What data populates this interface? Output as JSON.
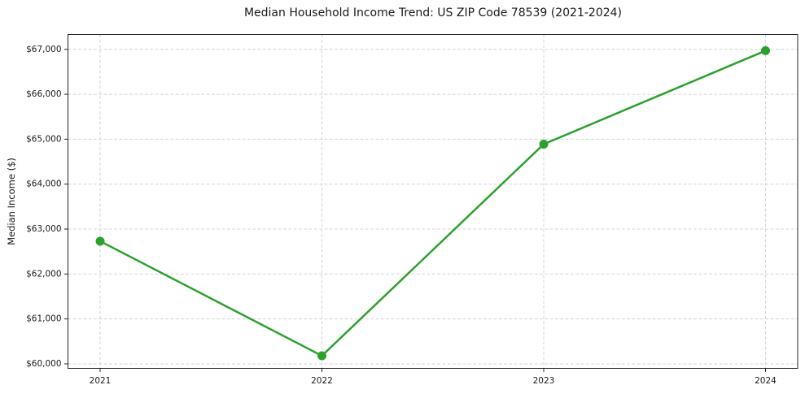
{
  "page": {
    "background": "#ffffff"
  },
  "chart_data": {
    "type": "line",
    "title": "Median Household Income Trend: US ZIP Code 78539 (2021-2024)",
    "xlabel": "",
    "ylabel": "Median Income ($)",
    "x": [
      2021,
      2022,
      2023,
      2024
    ],
    "series": [
      {
        "values": [
          62730,
          60180,
          64890,
          66970
        ],
        "color": "#2ca02c",
        "marker": "circle"
      }
    ],
    "x_tick_labels": [
      "2021",
      "2022",
      "2023",
      "2024"
    ],
    "y_ticks": [
      60000,
      61000,
      62000,
      63000,
      64000,
      65000,
      66000,
      67000
    ],
    "y_tick_labels": [
      "$60,000",
      "$61,000",
      "$62,000",
      "$63,000",
      "$64,000",
      "$65,000",
      "$66,000",
      "$67,000"
    ],
    "xlim": [
      2020.855,
      2024.145
    ],
    "ylim": [
      59900,
      67330
    ],
    "grid": true,
    "grid_style": "dashed",
    "grid_color": "#d4d4d4",
    "axes_color": "#262626",
    "text_color": "#1a1a1a",
    "legend": "none"
  }
}
